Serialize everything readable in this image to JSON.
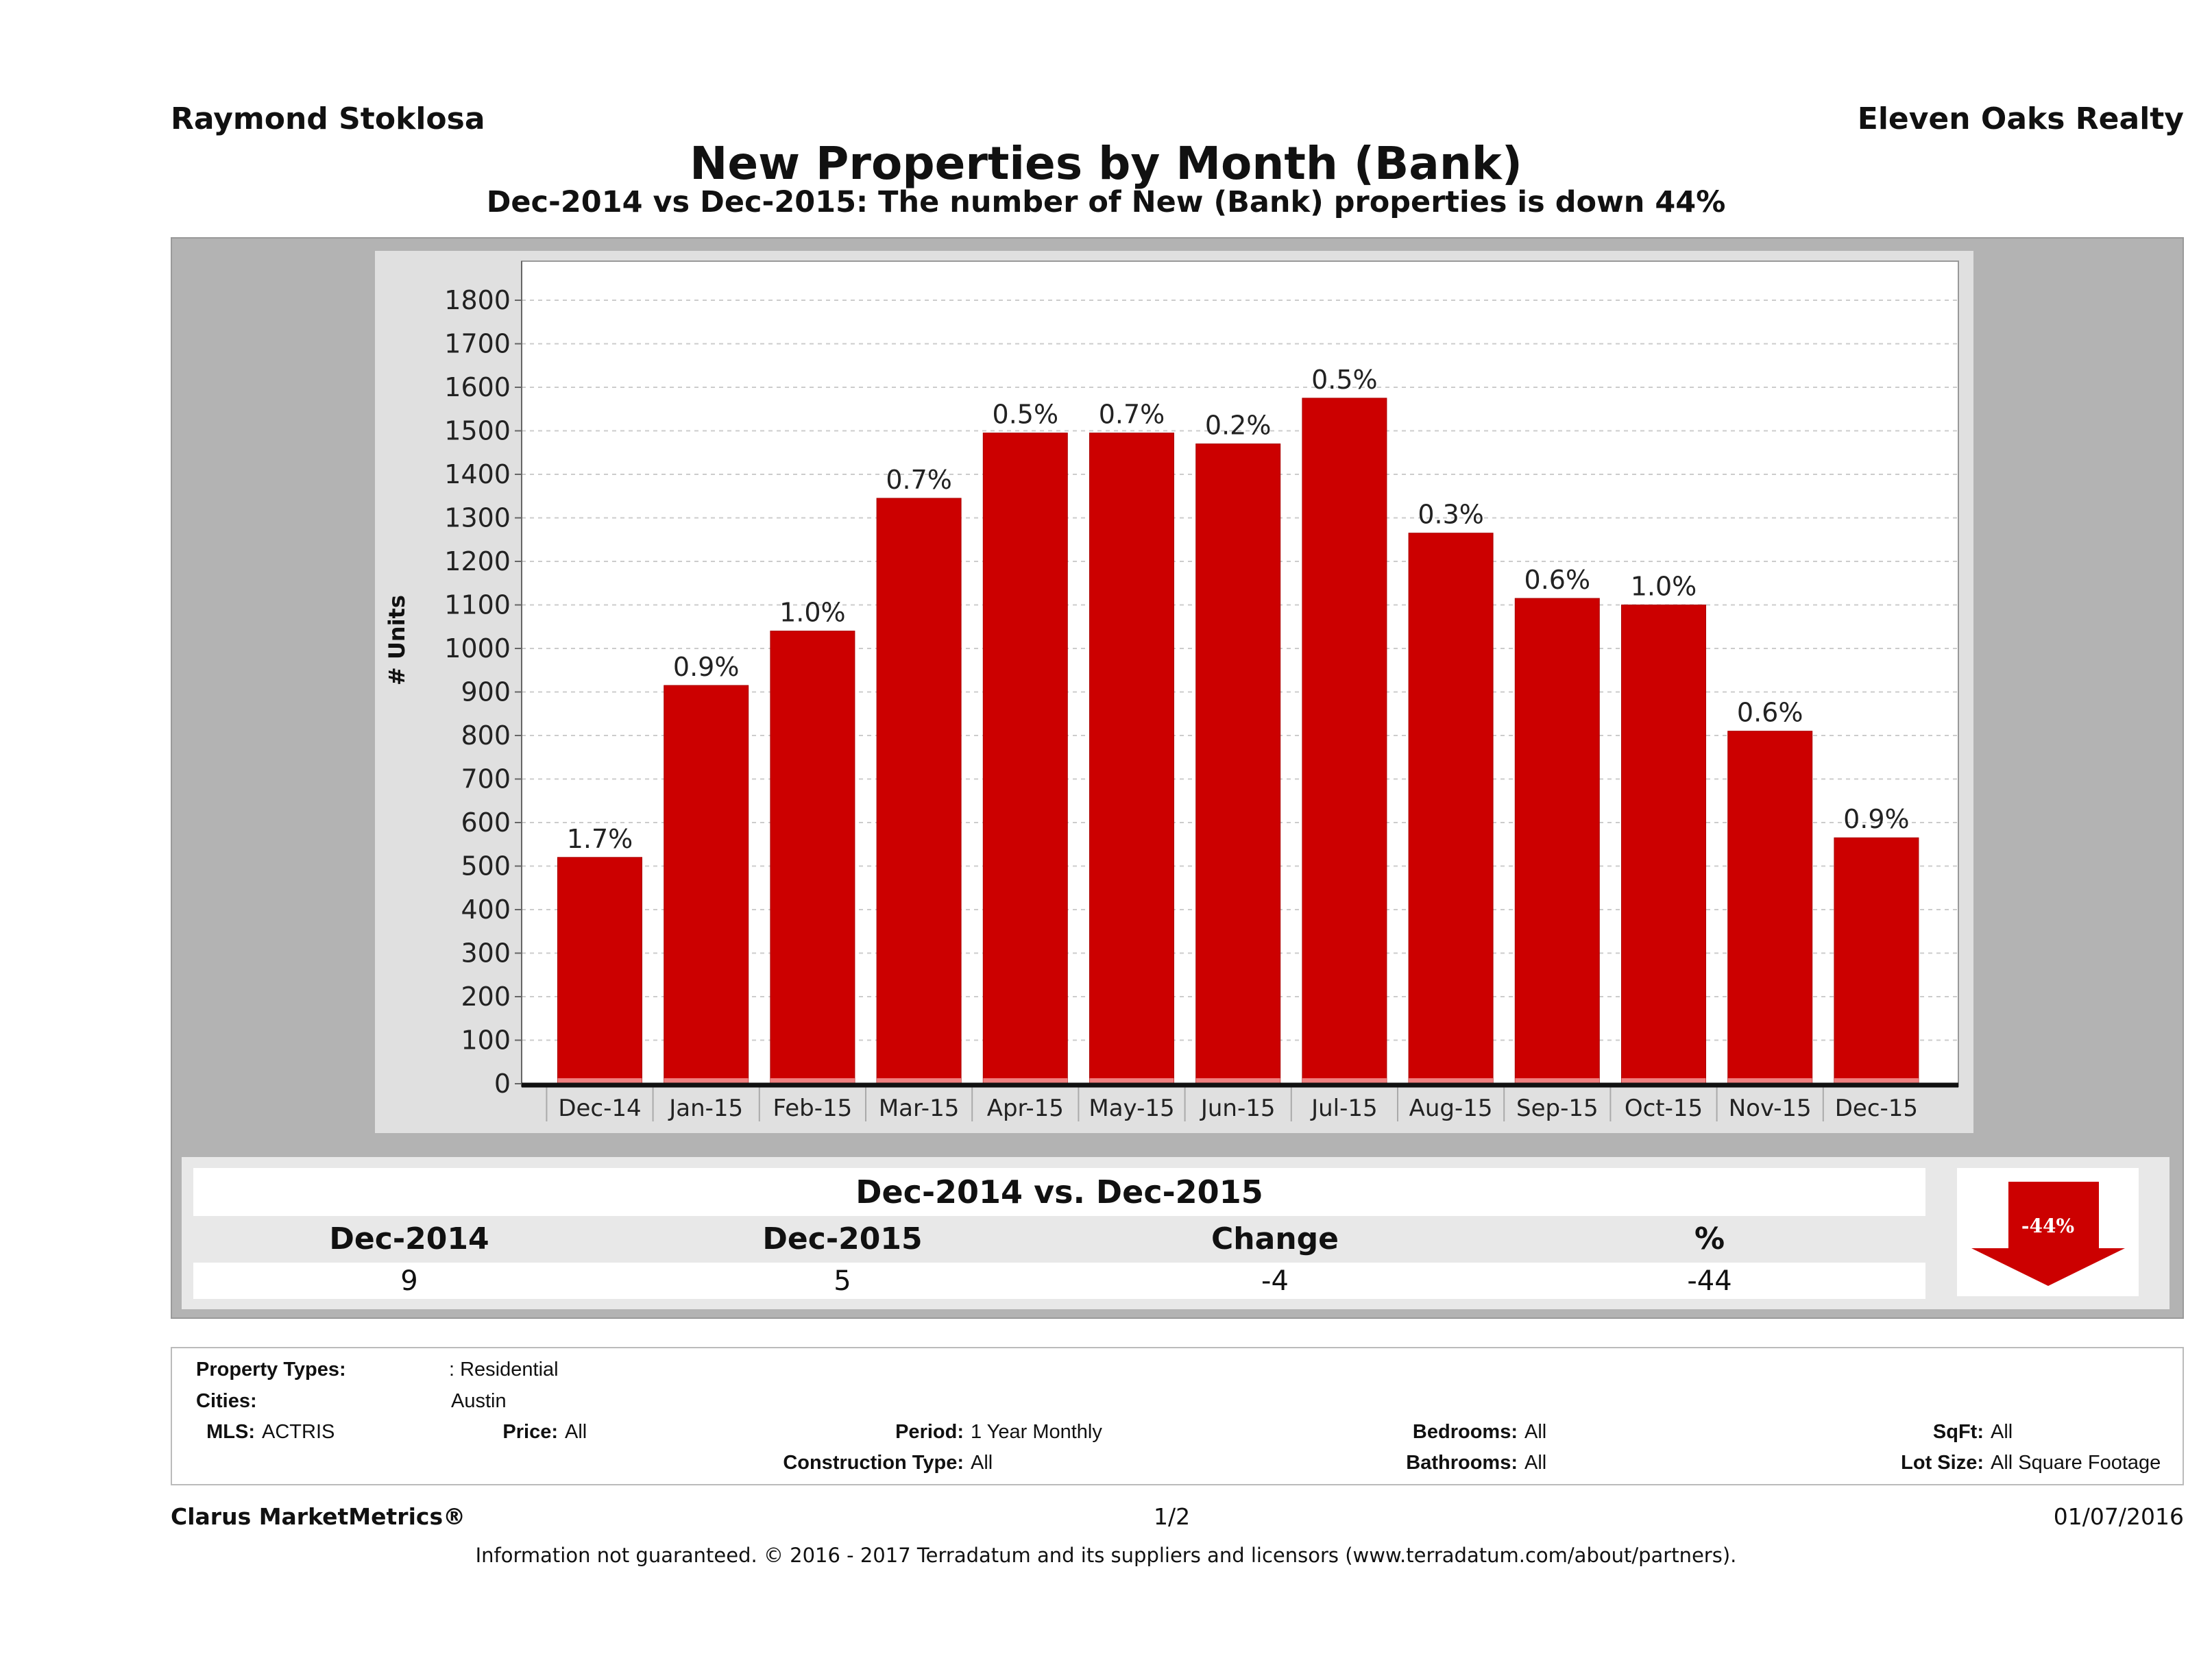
{
  "header": {
    "agent": "Raymond Stoklosa",
    "office": "Eleven Oaks Realty"
  },
  "colors": {
    "bar": "#cc0000",
    "panel": "#b3b3b3",
    "plot_bg": "#ffffff"
  },
  "chart_data": {
    "type": "bar",
    "title": "New Properties by Month (Bank)",
    "subtitle": "Dec-2014 vs Dec-2015: The number of New (Bank)  properties is down 44%",
    "ylabel": "# Units",
    "xlabel": "",
    "ylim": [
      0,
      1800
    ],
    "yticks": [
      0,
      100,
      200,
      300,
      400,
      500,
      600,
      700,
      800,
      900,
      1000,
      1100,
      1200,
      1300,
      1400,
      1500,
      1600,
      1700,
      1800
    ],
    "grid": true,
    "categories": [
      "Dec-14",
      "Jan-15",
      "Feb-15",
      "Mar-15",
      "Apr-15",
      "May-15",
      "Jun-15",
      "Jul-15",
      "Aug-15",
      "Sep-15",
      "Oct-15",
      "Nov-15",
      "Dec-15"
    ],
    "values": [
      520,
      915,
      1040,
      1345,
      1495,
      1495,
      1470,
      1575,
      1265,
      1115,
      1100,
      810,
      565
    ],
    "data_labels": [
      "1.7%",
      "0.9%",
      "1.0%",
      "0.7%",
      "0.5%",
      "0.7%",
      "0.2%",
      "0.5%",
      "0.3%",
      "0.6%",
      "1.0%",
      "0.6%",
      "0.9%"
    ]
  },
  "comparison": {
    "title": "Dec-2014 vs. Dec-2015",
    "headers": [
      "Dec-2014",
      "Dec-2015",
      "Change",
      "%"
    ],
    "values": [
      "9",
      "5",
      "-4",
      "-44"
    ],
    "badge": "-44%"
  },
  "criteria": {
    "property_types_label": "Property Types:",
    "property_types": ": Residential",
    "cities_label": "Cities:",
    "cities": "Austin",
    "mls_label": "MLS:",
    "mls": "ACTRIS",
    "price_label": "Price:",
    "price": "All",
    "period_label": "Period:",
    "period": "1 Year Monthly",
    "construction_label": "Construction Type:",
    "construction": "All",
    "bedrooms_label": "Bedrooms:",
    "bedrooms": "All",
    "bathrooms_label": "Bathrooms:",
    "bathrooms": "All",
    "sqft_label": "SqFt:",
    "sqft": "All",
    "lot_label": "Lot Size:",
    "lot": "All Square Footage"
  },
  "footer": {
    "brand": "Clarus MarketMetrics®",
    "page": "1/2",
    "date": "01/07/2016",
    "disclaimer": "Information not guaranteed. © 2016 - 2017 Terradatum and its suppliers and licensors (www.terradatum.com/about/partners)."
  }
}
